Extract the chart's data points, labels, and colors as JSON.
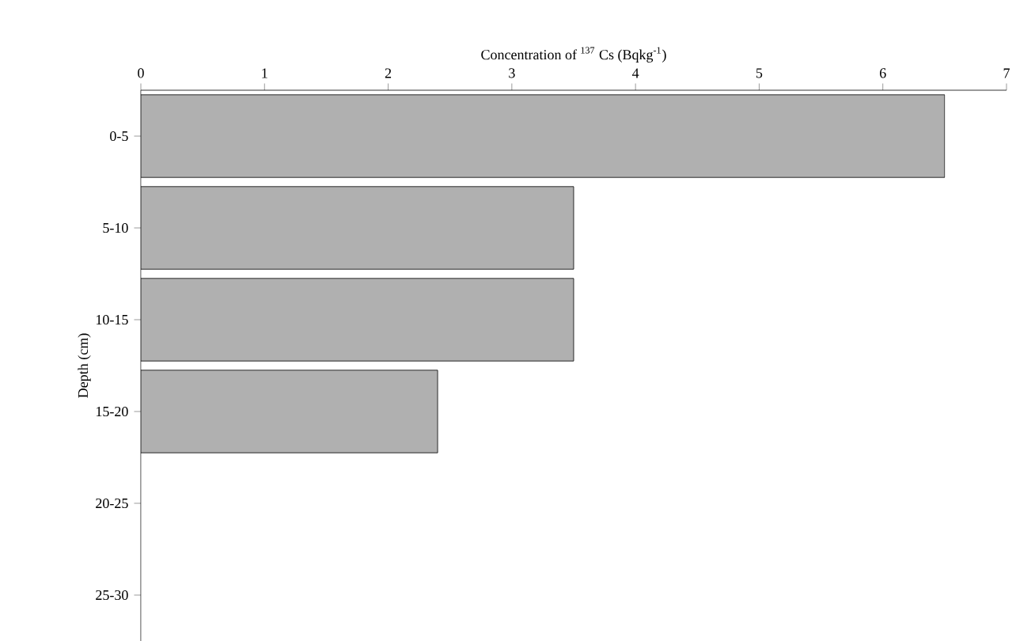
{
  "chart_data": {
    "type": "bar",
    "orientation": "horizontal",
    "xlabel": "Concentration of $^{137}$ Cs (Bqkg$^{-1}$)",
    "ylabel": "Depth (cm)",
    "categories": [
      "0-5",
      "5-10",
      "10-15",
      "15-20",
      "20-25",
      "25-30"
    ],
    "values": [
      6.5,
      3.5,
      3.5,
      2.4,
      null,
      null
    ],
    "color": "#b0b0b0",
    "xlim": [
      0,
      7
    ],
    "xticks": [
      0,
      1,
      2,
      3,
      4,
      5,
      6,
      7
    ],
    "grid": false
  }
}
